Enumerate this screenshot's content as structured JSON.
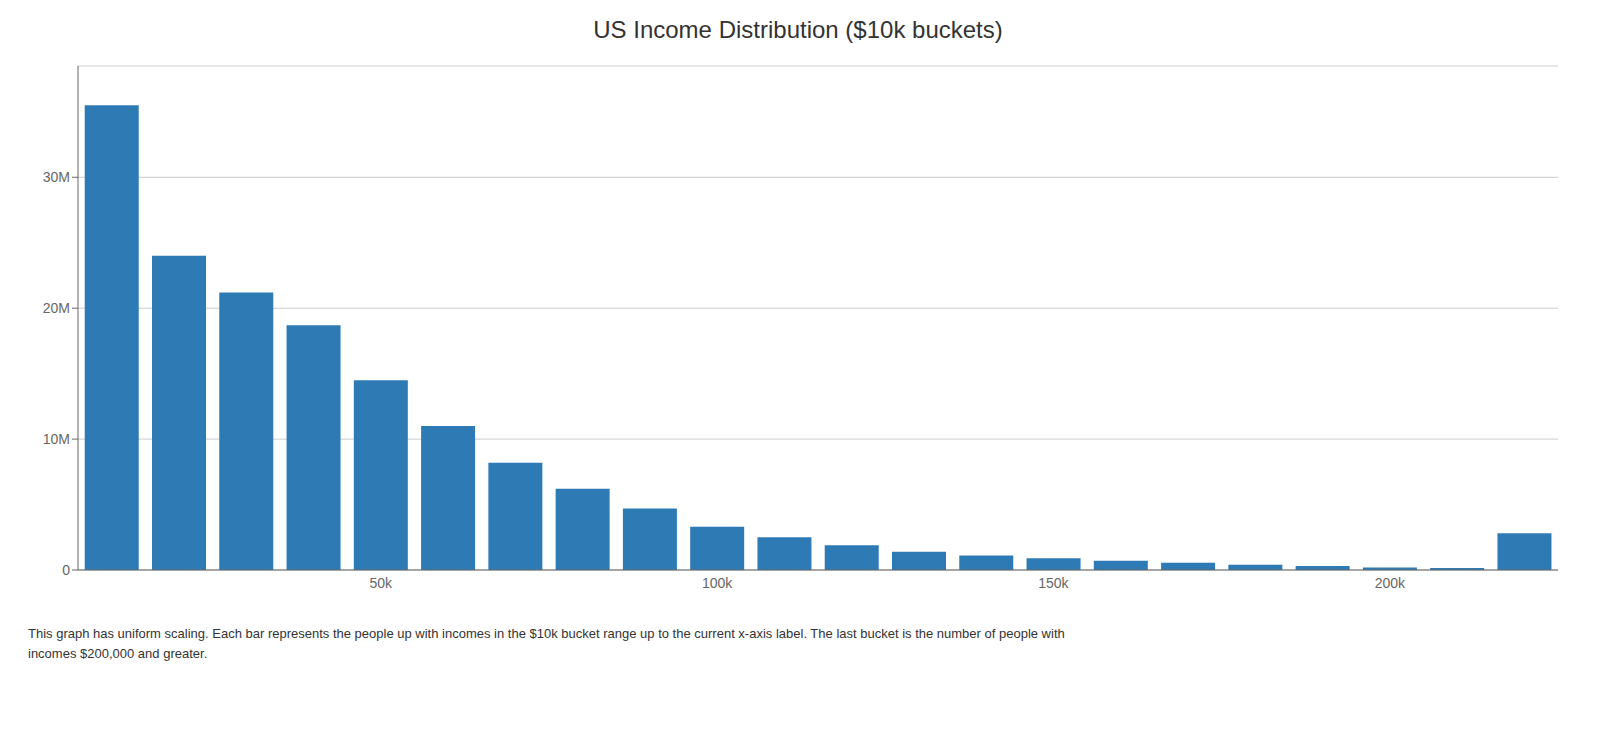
{
  "chart_data": {
    "type": "bar",
    "title": "US Income Distribution ($10k buckets)",
    "categories": [
      null,
      null,
      null,
      null,
      "50k",
      null,
      null,
      null,
      null,
      "100k",
      null,
      null,
      null,
      null,
      "150k",
      null,
      null,
      null,
      null,
      "200k",
      null,
      null
    ],
    "values": [
      35500000,
      24000000,
      21200000,
      18700000,
      14500000,
      11000000,
      8200000,
      6200000,
      4700000,
      3300000,
      2500000,
      1900000,
      1400000,
      1100000,
      900000,
      700000,
      550000,
      400000,
      300000,
      200000,
      150000,
      2800000
    ],
    "color": "#2e7ab5",
    "ylim": [
      0,
      38500000
    ],
    "yticks": [
      0,
      {
        "value": 10000000,
        "label": "10M"
      },
      {
        "value": 20000000,
        "label": "20M"
      },
      {
        "value": 30000000,
        "label": "30M"
      }
    ],
    "grid": true,
    "annotations": [
      "This graph has uniform scaling. Each bar represents the people up with incomes in the $10k bucket range up to the current x-axis label. The last bucket is the number of people with",
      "incomes $200,000 and greater."
    ]
  }
}
